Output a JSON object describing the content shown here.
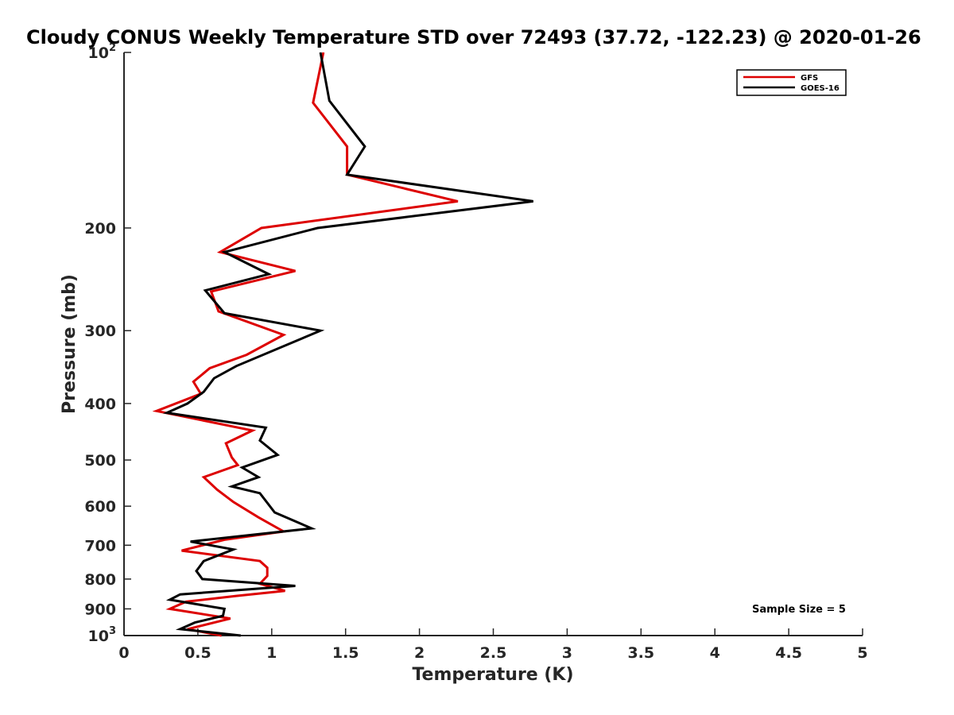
{
  "chart_data": {
    "type": "line",
    "title": "Cloudy CONUS Weekly Temperature STD over 72493 (37.72, -122.23) @ 2020-01-26",
    "xlabel": "Temperature (K)",
    "ylabel": "Pressure (mb)",
    "xlim": [
      0,
      5
    ],
    "ylim": [
      100,
      1000
    ],
    "y_scale": "log",
    "y_reversed": true,
    "grid": false,
    "legend_position": "top-right",
    "x_ticks": [
      0,
      0.5,
      1,
      1.5,
      2,
      2.5,
      3,
      3.5,
      4,
      4.5,
      5
    ],
    "x_tick_labels": [
      "0",
      "0.5",
      "1",
      "1.5",
      "2",
      "2.5",
      "3",
      "3.5",
      "4",
      "4.5",
      "5"
    ],
    "y_ticks": [
      {
        "value": 100,
        "base": "10",
        "exp": "2"
      },
      {
        "value": 200,
        "label": "200"
      },
      {
        "value": 300,
        "label": "300"
      },
      {
        "value": 400,
        "label": "400"
      },
      {
        "value": 500,
        "label": "500"
      },
      {
        "value": 600,
        "label": "600"
      },
      {
        "value": 700,
        "label": "700"
      },
      {
        "value": 800,
        "label": "800"
      },
      {
        "value": 900,
        "label": "900"
      },
      {
        "value": 1000,
        "base": "10",
        "exp": "3"
      }
    ],
    "series": [
      {
        "name": "GFS",
        "color": "#dd0000",
        "x": [
          1.35,
          1.28,
          1.51,
          1.51,
          2.26,
          0.93,
          0.65,
          1.16,
          0.59,
          0.64,
          1.08,
          0.83,
          0.58,
          0.47,
          0.52,
          0.22,
          0.87,
          0.69,
          0.73,
          0.77,
          0.54,
          0.63,
          0.74,
          0.91,
          1.08,
          0.68,
          0.39,
          0.92,
          0.97,
          0.97,
          0.92,
          1.09,
          0.76,
          0.42,
          0.31,
          0.72,
          0.43,
          0.66
        ],
        "y": [
          100,
          122,
          145,
          162,
          180,
          200,
          220,
          237,
          257,
          278,
          305,
          330,
          348,
          367,
          385,
          412,
          445,
          468,
          495,
          510,
          535,
          562,
          590,
          627,
          663,
          685,
          715,
          745,
          765,
          790,
          815,
          838,
          855,
          875,
          900,
          935,
          975,
          1000
        ]
      },
      {
        "name": "GOES-16",
        "color": "#000000",
        "x": [
          1.33,
          1.39,
          1.63,
          1.51,
          2.77,
          1.31,
          0.68,
          0.98,
          0.55,
          0.68,
          1.33,
          0.76,
          0.61,
          0.54,
          0.43,
          0.29,
          0.96,
          0.92,
          1.04,
          0.8,
          0.91,
          0.73,
          0.92,
          1.02,
          1.27,
          0.45,
          0.74,
          0.54,
          0.49,
          0.53,
          1.16,
          0.38,
          0.31,
          0.68,
          0.67,
          0.48,
          0.38,
          0.79
        ],
        "y": [
          100,
          121,
          145,
          162,
          180,
          200,
          220,
          240,
          256,
          280,
          300,
          345,
          362,
          382,
          400,
          415,
          440,
          463,
          490,
          515,
          535,
          555,
          570,
          615,
          655,
          690,
          712,
          745,
          775,
          800,
          822,
          850,
          868,
          900,
          925,
          950,
          975,
          1000
        ]
      }
    ],
    "annotations": [
      {
        "text": "Sample Size = 5"
      }
    ]
  }
}
